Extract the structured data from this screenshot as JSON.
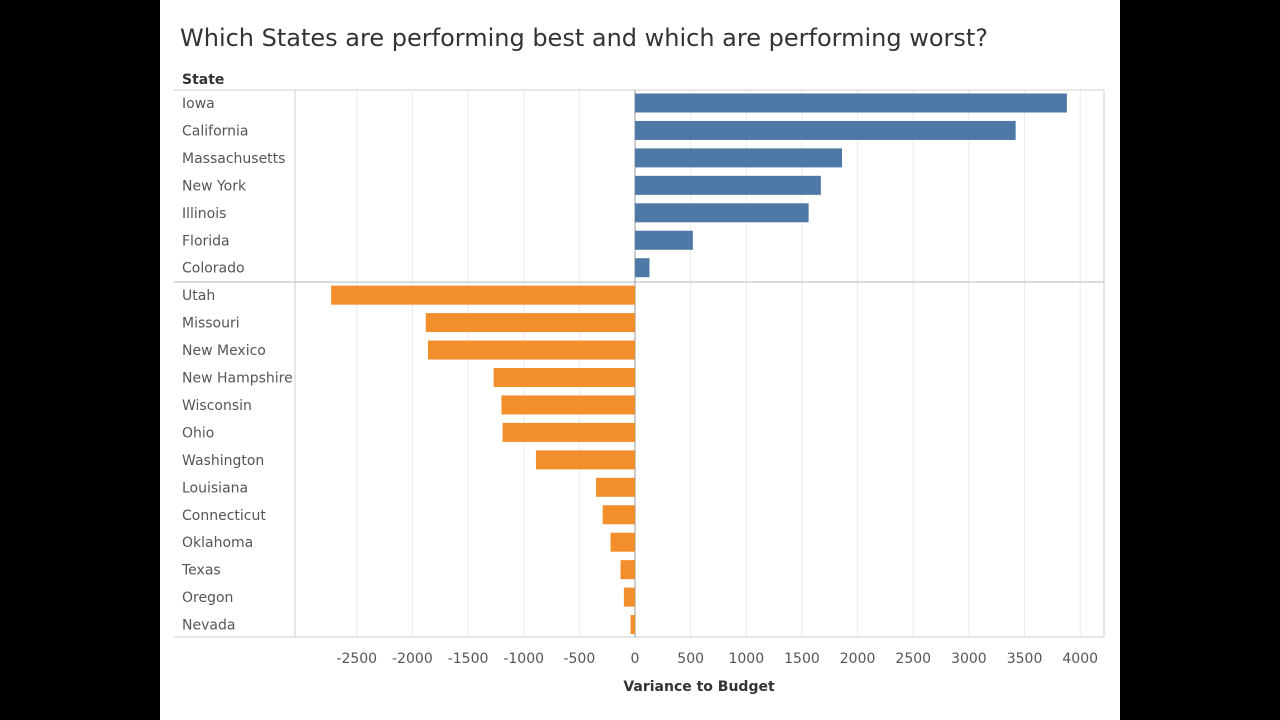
{
  "title": "Which States are performing best and which are performing worst?",
  "colors": {
    "positive": "#4e79a7",
    "negative": "#f28e2b",
    "grid": "#ebebeb",
    "border": "#cfcfcf"
  },
  "chart_data": {
    "type": "bar",
    "orientation": "horizontal",
    "row_header": "State",
    "xlabel": "Variance to Budget",
    "xlim": [
      -2900,
      4200
    ],
    "xticks": [
      -2500,
      -2000,
      -1500,
      -1000,
      -500,
      0,
      500,
      1000,
      1500,
      2000,
      2500,
      3000,
      3500,
      4000
    ],
    "grid": true,
    "categories": [
      "Iowa",
      "California",
      "Massachusetts",
      "New York",
      "Illinois",
      "Florida",
      "Colorado",
      "Utah",
      "Missouri",
      "New Mexico",
      "New Hampshire",
      "Wisconsin",
      "Ohio",
      "Washington",
      "Louisiana",
      "Connecticut",
      "Oklahoma",
      "Texas",
      "Oregon",
      "Nevada"
    ],
    "values": [
      3880,
      3420,
      1860,
      1670,
      1560,
      520,
      130,
      -2730,
      -1880,
      -1860,
      -1270,
      -1200,
      -1190,
      -890,
      -350,
      -290,
      -220,
      -130,
      -100,
      -40
    ]
  }
}
